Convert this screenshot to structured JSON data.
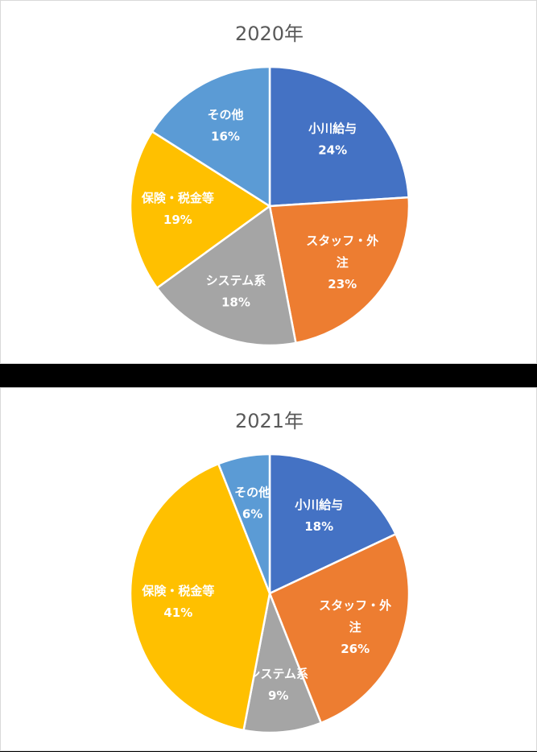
{
  "chart_data": [
    {
      "type": "pie",
      "title": "2020年",
      "slices": [
        {
          "name": "小川給与",
          "value": 24,
          "label_lines": [
            "小川給与"
          ],
          "pct": "24%",
          "color": "#4472C4"
        },
        {
          "name": "スタッフ・外注",
          "value": 23,
          "label_lines": [
            "スタッフ・外",
            "注"
          ],
          "pct": "23%",
          "color": "#ED7D31"
        },
        {
          "name": "システム系",
          "value": 18,
          "label_lines": [
            "システム系"
          ],
          "pct": "18%",
          "color": "#A5A5A5"
        },
        {
          "name": "保険・税金等",
          "value": 19,
          "label_lines": [
            "保険・税金等"
          ],
          "pct": "19%",
          "color": "#FFC000"
        },
        {
          "name": "その他",
          "value": 16,
          "label_lines": [
            "その他"
          ],
          "pct": "16%",
          "color": "#5B9BD5"
        }
      ]
    },
    {
      "type": "pie",
      "title": "2021年",
      "slices": [
        {
          "name": "小川給与",
          "value": 18,
          "label_lines": [
            "小川給与"
          ],
          "pct": "18%",
          "color": "#4472C4"
        },
        {
          "name": "スタッフ・外注",
          "value": 26,
          "label_lines": [
            "スタッフ・外",
            "注"
          ],
          "pct": "26%",
          "color": "#ED7D31"
        },
        {
          "name": "システム系",
          "value": 9,
          "label_lines": [
            "システム系"
          ],
          "pct": "9%",
          "color": "#A5A5A5"
        },
        {
          "name": "保険・税金等",
          "value": 41,
          "label_lines": [
            "保険・税金等"
          ],
          "pct": "41%",
          "color": "#FFC000"
        },
        {
          "name": "その他",
          "value": 6,
          "label_lines": [
            "その他"
          ],
          "pct": "6%",
          "color": "#5B9BD5"
        }
      ]
    }
  ]
}
